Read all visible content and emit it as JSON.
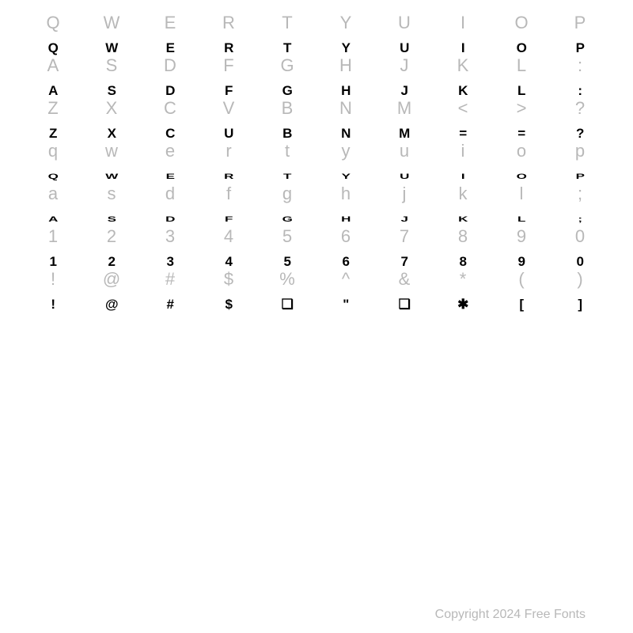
{
  "font_specimen": {
    "background_color": "#ffffff",
    "label_color": "#b8b8b8",
    "glyph_color": "#000000",
    "label_fontsize": 22,
    "glyph_fontsize": 17,
    "columns": 10,
    "rows": [
      {
        "keys": [
          "Q",
          "W",
          "E",
          "R",
          "T",
          "Y",
          "U",
          "I",
          "O",
          "P"
        ],
        "glyphs": [
          "Q",
          "W",
          "E",
          "R",
          "T",
          "Y",
          "U",
          "I",
          "O",
          "P"
        ],
        "glyph_class": ""
      },
      {
        "keys": [
          "A",
          "S",
          "D",
          "F",
          "G",
          "H",
          "J",
          "K",
          "L",
          ":"
        ],
        "glyphs": [
          "A",
          "S",
          "D",
          "F",
          "G",
          "H",
          "J",
          "K",
          "L",
          ":"
        ],
        "glyph_class": ""
      },
      {
        "keys": [
          "Z",
          "X",
          "C",
          "V",
          "B",
          "N",
          "M",
          "<",
          ">",
          "?"
        ],
        "glyphs": [
          "Z",
          "X",
          "C",
          "U",
          "B",
          "N",
          "M",
          "=",
          "=",
          "?"
        ],
        "glyph_class": ""
      },
      {
        "keys": [
          "q",
          "w",
          "e",
          "r",
          "t",
          "y",
          "u",
          "i",
          "o",
          "p"
        ],
        "glyphs": [
          "Q",
          "W",
          "E",
          "R",
          "T",
          "Y",
          "U",
          "I",
          "O",
          "P"
        ],
        "glyph_class": "short"
      },
      {
        "keys": [
          "a",
          "s",
          "d",
          "f",
          "g",
          "h",
          "j",
          "k",
          "l",
          ";"
        ],
        "glyphs": [
          "A",
          "S",
          "D",
          "F",
          "G",
          "H",
          "J",
          "K",
          "L",
          ";"
        ],
        "glyph_class": "short"
      },
      {
        "keys": [
          "1",
          "2",
          "3",
          "4",
          "5",
          "6",
          "7",
          "8",
          "9",
          "0"
        ],
        "glyphs": [
          "1",
          "2",
          "3",
          "4",
          "5",
          "6",
          "7",
          "8",
          "9",
          "0"
        ],
        "glyph_class": ""
      },
      {
        "keys": [
          "!",
          "@",
          "#",
          "$",
          "%",
          "^",
          "&",
          "*",
          "(",
          ")"
        ],
        "glyphs": [
          "!",
          "@",
          "#",
          "$",
          "❏",
          "\"",
          "❏",
          "✱",
          "[",
          "]"
        ],
        "glyph_class": ""
      }
    ]
  },
  "copyright": "Copyright 2024 Free Fonts"
}
